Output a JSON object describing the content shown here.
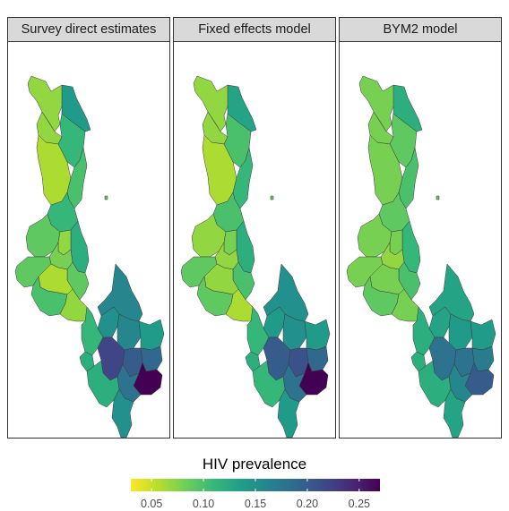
{
  "panels": [
    {
      "title": "Survey direct estimates",
      "values": {
        "far_north": 0.07,
        "karonga": 0.14,
        "chitipa_s": 0.07,
        "rumphi": 0.11,
        "mzimba_n": 0.06,
        "nkhata_bay": 0.1,
        "mzimba_s": 0.11,
        "likoma": 0.09,
        "kasungu": 0.09,
        "nkhotakota": 0.12,
        "ntchisi": 0.07,
        "dowa": 0.08,
        "mchinji": 0.09,
        "salima": 0.09,
        "lilongwe": 0.06,
        "dedza": 0.1,
        "ntcheu": 0.07,
        "mangochi": 0.16,
        "balaka": 0.15,
        "machinga": 0.16,
        "zomba": 0.14,
        "neno": 0.11,
        "mwanza": 0.12,
        "blantyre": 0.22,
        "chiradzulu": 0.2,
        "phalombe": 0.19,
        "mulanje": 0.27,
        "thyolo": 0.18,
        "chikwawa": 0.12,
        "nsanje": 0.15
      }
    },
    {
      "title": "Fixed effects model",
      "values": {
        "far_north": 0.07,
        "karonga": 0.13,
        "chitipa_s": 0.07,
        "rumphi": 0.1,
        "mzimba_n": 0.06,
        "nkhata_bay": 0.11,
        "mzimba_s": 0.1,
        "likoma": 0.09,
        "kasungu": 0.07,
        "nkhotakota": 0.12,
        "ntchisi": 0.08,
        "dowa": 0.07,
        "mchinji": 0.09,
        "salima": 0.1,
        "lilongwe": 0.07,
        "dedza": 0.09,
        "ntcheu": 0.06,
        "mangochi": 0.15,
        "balaka": 0.14,
        "machinga": 0.15,
        "zomba": 0.14,
        "neno": 0.11,
        "mwanza": 0.12,
        "blantyre": 0.2,
        "chiradzulu": 0.21,
        "phalombe": 0.19,
        "mulanje": 0.27,
        "thyolo": 0.18,
        "chikwawa": 0.11,
        "nsanje": 0.14
      }
    },
    {
      "title": "BYM2 model",
      "values": {
        "far_north": 0.08,
        "karonga": 0.12,
        "chitipa_s": 0.08,
        "rumphi": 0.09,
        "mzimba_n": 0.08,
        "nkhata_bay": 0.1,
        "mzimba_s": 0.09,
        "likoma": 0.09,
        "kasungu": 0.08,
        "nkhotakota": 0.11,
        "ntchisi": 0.08,
        "dowa": 0.07,
        "mchinji": 0.08,
        "salima": 0.1,
        "lilongwe": 0.08,
        "dedza": 0.09,
        "ntcheu": 0.08,
        "mangochi": 0.13,
        "balaka": 0.13,
        "machinga": 0.14,
        "zomba": 0.14,
        "neno": 0.12,
        "mwanza": 0.12,
        "blantyre": 0.18,
        "chiradzulu": 0.18,
        "phalombe": 0.17,
        "mulanje": 0.2,
        "thyolo": 0.16,
        "chikwawa": 0.12,
        "nsanje": 0.13
      }
    }
  ],
  "legend": {
    "title": "HIV prevalence",
    "min": 0.03,
    "max": 0.27,
    "ticks": [
      {
        "value": 0.05,
        "label": "0.05"
      },
      {
        "value": 0.1,
        "label": "0.10"
      },
      {
        "value": 0.15,
        "label": "0.15"
      },
      {
        "value": 0.2,
        "label": "0.20"
      },
      {
        "value": 0.25,
        "label": "0.25"
      }
    ],
    "colors": [
      "#fde725",
      "#b5de2b",
      "#6ece58",
      "#35b779",
      "#1f9e89",
      "#26828e",
      "#31688e",
      "#3e4989",
      "#482878",
      "#440154"
    ]
  }
}
